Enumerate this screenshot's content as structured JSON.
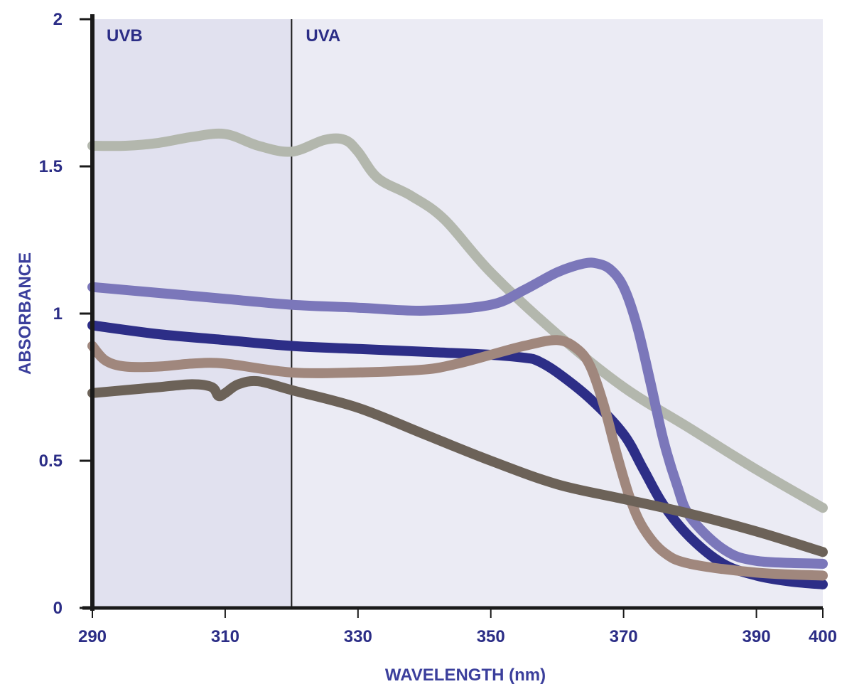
{
  "chart_data": {
    "type": "line",
    "title": "",
    "xlabel": "WAVELENGTH (nm)",
    "ylabel": "ABSORBANCE",
    "xlim": [
      290,
      400
    ],
    "ylim": [
      0,
      2
    ],
    "xticks": [
      290,
      310,
      330,
      350,
      370,
      390,
      400
    ],
    "yticks": [
      0,
      0.5,
      1,
      1.5,
      2
    ],
    "ytick_labels": [
      "0",
      "0.5",
      "1",
      "1.5",
      "2"
    ],
    "grid": false,
    "legend": "none",
    "regions": [
      {
        "label": "UVB",
        "from": 290,
        "to": 320,
        "color": "#e1e1ef"
      },
      {
        "label": "UVA",
        "from": 320,
        "to": 400,
        "color": "#ebebf4"
      }
    ],
    "series": [
      {
        "color": "#b3b7ad",
        "x": [
          290,
          295,
          300,
          305,
          310,
          315,
          320,
          325,
          328,
          330,
          333,
          338,
          343,
          350,
          360,
          370,
          380,
          390,
          400
        ],
        "y": [
          1.57,
          1.57,
          1.58,
          1.6,
          1.61,
          1.57,
          1.55,
          1.59,
          1.59,
          1.55,
          1.46,
          1.4,
          1.32,
          1.14,
          0.93,
          0.75,
          0.61,
          0.47,
          0.34
        ]
      },
      {
        "color": "#7b77ba",
        "x": [
          290,
          300,
          310,
          320,
          330,
          340,
          350,
          355,
          360,
          364,
          366,
          368,
          370,
          372,
          374,
          376,
          378,
          380,
          385,
          390,
          400
        ],
        "y": [
          1.09,
          1.07,
          1.05,
          1.03,
          1.02,
          1.01,
          1.03,
          1.08,
          1.14,
          1.17,
          1.17,
          1.15,
          1.09,
          0.96,
          0.77,
          0.57,
          0.42,
          0.31,
          0.2,
          0.16,
          0.15
        ]
      },
      {
        "color": "#2d2e87",
        "x": [
          290,
          300,
          310,
          320,
          330,
          340,
          350,
          355,
          357,
          360,
          365,
          370,
          373,
          376,
          380,
          385,
          390,
          395,
          400
        ],
        "y": [
          0.96,
          0.93,
          0.91,
          0.89,
          0.88,
          0.87,
          0.86,
          0.85,
          0.84,
          0.8,
          0.71,
          0.59,
          0.47,
          0.35,
          0.24,
          0.15,
          0.11,
          0.09,
          0.08
        ]
      },
      {
        "color": "#a0877d",
        "x": [
          290,
          292,
          295,
          300,
          305,
          310,
          320,
          330,
          340,
          345,
          350,
          355,
          360,
          363,
          365,
          367,
          369,
          371,
          373,
          376,
          380,
          390,
          400
        ],
        "y": [
          0.89,
          0.84,
          0.82,
          0.82,
          0.83,
          0.83,
          0.8,
          0.8,
          0.81,
          0.83,
          0.86,
          0.89,
          0.91,
          0.88,
          0.82,
          0.69,
          0.52,
          0.37,
          0.27,
          0.19,
          0.15,
          0.12,
          0.11
        ]
      },
      {
        "color": "#6c6258",
        "x": [
          290,
          295,
          300,
          305,
          308,
          309,
          310,
          312,
          315,
          320,
          330,
          340,
          350,
          360,
          370,
          380,
          390,
          400
        ],
        "y": [
          0.73,
          0.74,
          0.75,
          0.76,
          0.75,
          0.72,
          0.73,
          0.76,
          0.77,
          0.74,
          0.68,
          0.59,
          0.5,
          0.42,
          0.37,
          0.32,
          0.26,
          0.19
        ]
      }
    ]
  }
}
